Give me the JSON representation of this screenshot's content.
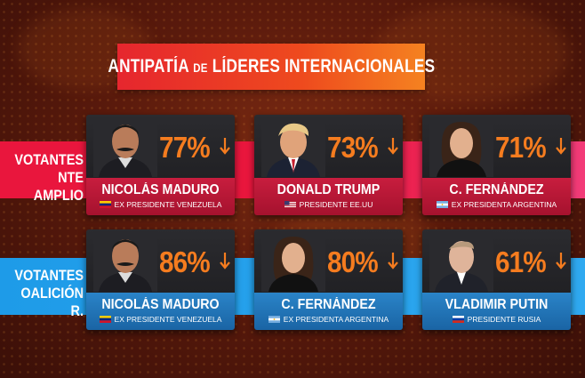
{
  "title": {
    "main": "ANTIPATÍA",
    "de": "DE",
    "rest": "LÍDERES INTERNACIONALES"
  },
  "rows": [
    {
      "label_line1": "VOTANTES",
      "label_line2": "NTE AMPLIO",
      "band_color": "#e9163d",
      "cards": [
        {
          "percent": "77%",
          "name": "NICOLÁS MADURO",
          "role": "EX PRESIDENTE VENEZUELA",
          "flag": "venezuela-flag"
        },
        {
          "percent": "73%",
          "name": "DONALD TRUMP",
          "role": "PRESIDENTE EE.UU",
          "flag": "usa-flag"
        },
        {
          "percent": "71%",
          "name": "C. FERNÁNDEZ",
          "role": "EX PRESIDENTA ARGENTINA",
          "flag": "argentina-flag"
        }
      ]
    },
    {
      "label_line1": "VOTANTES",
      "label_line2": "OALICIÓN R.",
      "band_color": "#1e9be8",
      "cards": [
        {
          "percent": "86%",
          "name": "NICOLÁS MADURO",
          "role": "EX PRESIDENTE VENEZUELA",
          "flag": "venezuela-flag"
        },
        {
          "percent": "80%",
          "name": "C. FERNÁNDEZ",
          "role": "EX PRESIDENTA ARGENTINA",
          "flag": "argentina-flag"
        },
        {
          "percent": "61%",
          "name": "VLADIMIR PUTIN",
          "role": "PRESIDENTE RUSIA",
          "flag": "russia-flag"
        }
      ]
    }
  ],
  "colors": {
    "accent_orange": "#f57c1f",
    "title_red": "#e6262e",
    "band_red": "#e9163d",
    "band_blue": "#1e9be8"
  }
}
